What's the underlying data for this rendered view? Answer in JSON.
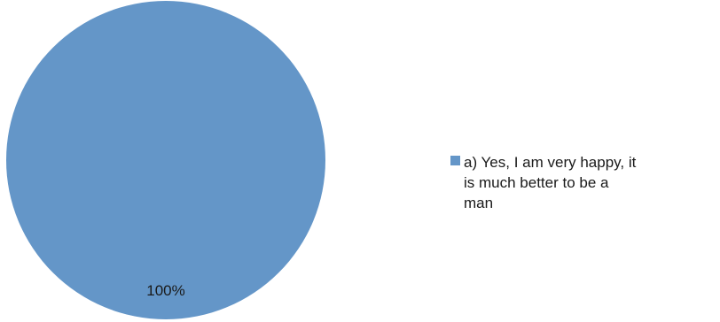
{
  "chart_data": {
    "type": "pie",
    "categories": [
      "a) Yes, I am very happy, it is much better to be a man"
    ],
    "values": [
      100
    ],
    "data_labels": [
      "100%"
    ],
    "legend_position": "right",
    "colors": [
      "#6496c8"
    ]
  },
  "legend": {
    "items": [
      {
        "label_line1": "a) Yes, I am very happy, it",
        "label_line2": "is much better to be a",
        "label_line3": "man"
      }
    ]
  }
}
